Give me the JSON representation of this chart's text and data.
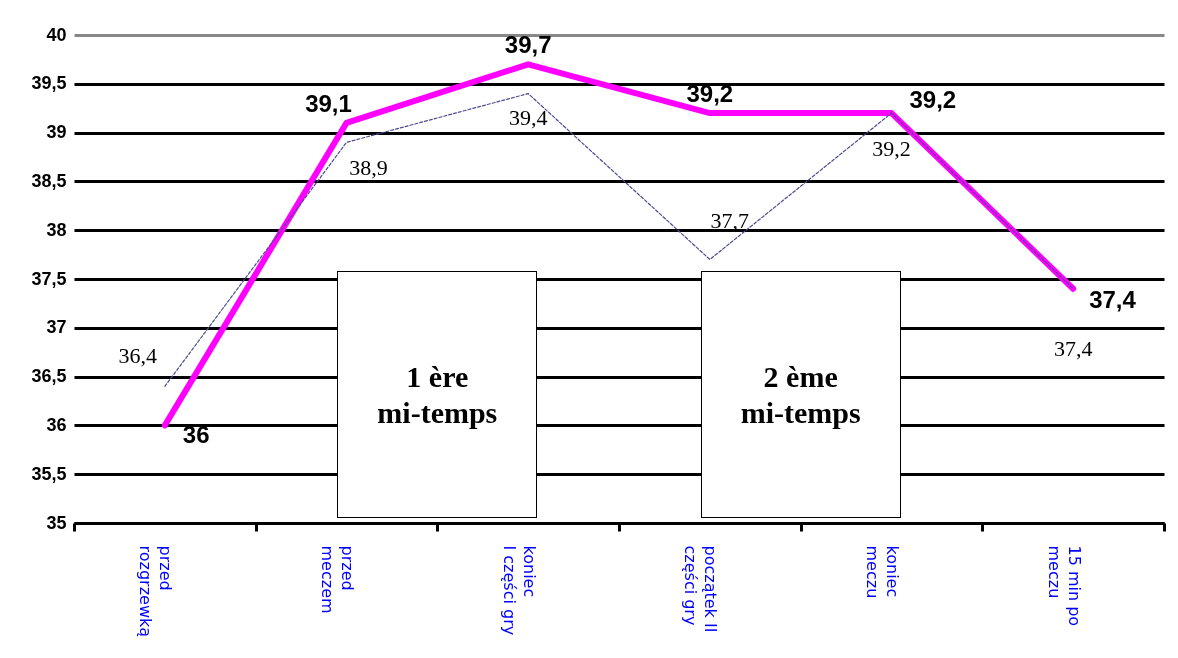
{
  "chart_data": {
    "type": "line",
    "categories": [
      "przed\nrozgrzewką",
      "przed\nmeczem",
      "koniec\nI części gry",
      "początek  II\nczęści gry",
      "koniec\nmeczu",
      "15 min po\nmeczu"
    ],
    "series": [
      {
        "color": "#ff00ff",
        "values": [
          36,
          39.1,
          39.7,
          39.2,
          39.2,
          37.4
        ],
        "value_labels": [
          "36",
          "39,1",
          "39,7",
          "39,2",
          "39,2",
          "37,4"
        ]
      },
      {
        "color": "#4b4b8f",
        "line_style": "dashed",
        "values": [
          36.4,
          38.9,
          39.4,
          37.7,
          39.2,
          37.4
        ],
        "value_labels": [
          "36,4",
          "38,9",
          "39,4",
          "37,7",
          "39,2",
          "37,4"
        ]
      }
    ],
    "ylim": [
      35,
      40
    ],
    "yticks": [
      35,
      {
        "value": 35.5,
        "label": "35,5"
      },
      36,
      {
        "value": 36.5,
        "label": "36,5"
      },
      37,
      {
        "value": 37.5,
        "label": "37,5"
      },
      38,
      {
        "value": 38.5,
        "label": "38,5"
      },
      39,
      {
        "value": 39.5,
        "label": "39,5"
      },
      40
    ],
    "grid": "y",
    "marker": "none",
    "annotations": [
      "1 ère\nmi-temps",
      "2 ème\nmi-temps"
    ]
  }
}
